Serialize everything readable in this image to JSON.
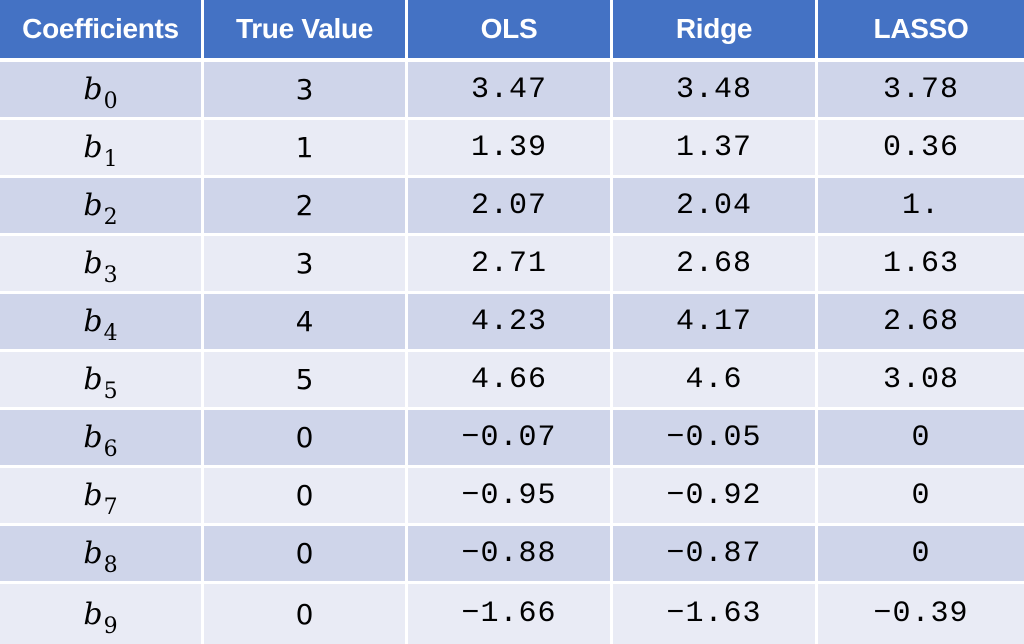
{
  "table": {
    "headers": [
      "Coefficients",
      "True Value",
      "OLS",
      "Ridge",
      "LASSO"
    ],
    "rows": [
      {
        "coef": "b",
        "sub": "0",
        "true_value": "3",
        "ols": "3.47",
        "ridge": "3.48",
        "lasso": "3.78"
      },
      {
        "coef": "b",
        "sub": "1",
        "true_value": "1",
        "ols": "1.39",
        "ridge": "1.37",
        "lasso": "0.36"
      },
      {
        "coef": "b",
        "sub": "2",
        "true_value": "2",
        "ols": "2.07",
        "ridge": "2.04",
        "lasso": "1."
      },
      {
        "coef": "b",
        "sub": "3",
        "true_value": "3",
        "ols": "2.71",
        "ridge": "2.68",
        "lasso": "1.63"
      },
      {
        "coef": "b",
        "sub": "4",
        "true_value": "4",
        "ols": "4.23",
        "ridge": "4.17",
        "lasso": "2.68"
      },
      {
        "coef": "b",
        "sub": "5",
        "true_value": "5",
        "ols": "4.66",
        "ridge": "4.6",
        "lasso": "3.08"
      },
      {
        "coef": "b",
        "sub": "6",
        "true_value": "0",
        "ols": "−0.07",
        "ridge": "−0.05",
        "lasso": "0"
      },
      {
        "coef": "b",
        "sub": "7",
        "true_value": "0",
        "ols": "−0.95",
        "ridge": "−0.92",
        "lasso": "0"
      },
      {
        "coef": "b",
        "sub": "8",
        "true_value": "0",
        "ols": "−0.88",
        "ridge": "−0.87",
        "lasso": "0"
      },
      {
        "coef": "b",
        "sub": "9",
        "true_value": "0",
        "ols": "−1.66",
        "ridge": "−1.63",
        "lasso": "−0.39"
      }
    ]
  },
  "colors": {
    "header_bg": "#4472c4",
    "header_text": "#ffffff",
    "row_band_dark": "#cfd5ea",
    "row_band_light": "#e9ebf5",
    "grid_line": "#ffffff"
  }
}
